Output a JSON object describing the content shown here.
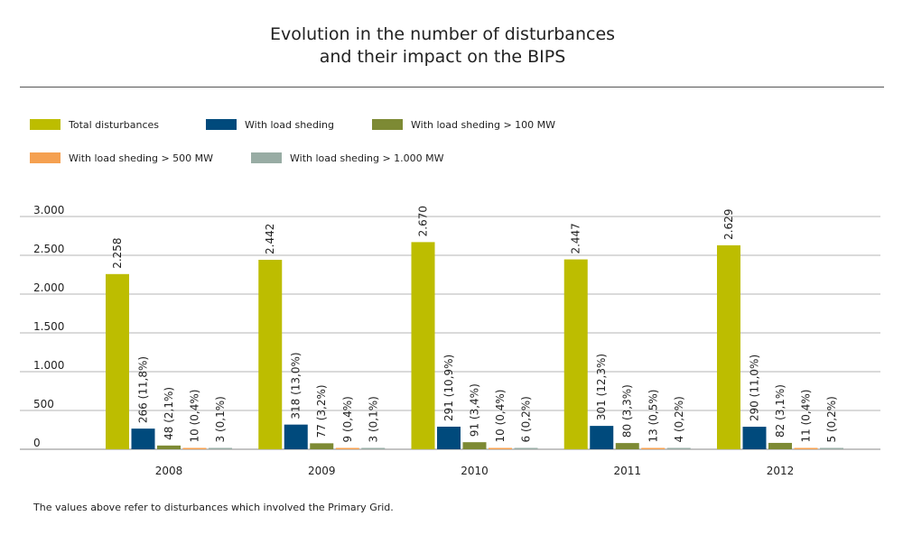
{
  "title_line1": "Evolution in the number of disturbances",
  "title_line2": "and their impact on the BIPS",
  "footnote": "The values above refer to disturbances which involved the Primary Grid.",
  "chart_data": {
    "type": "bar",
    "categories": [
      "2008",
      "2009",
      "2010",
      "2011",
      "2012"
    ],
    "ylim": [
      0,
      3000
    ],
    "yticks": [
      0,
      500,
      1000,
      1500,
      2000,
      2500,
      3000
    ],
    "ytick_labels": [
      "0",
      "500",
      "1.000",
      "1.500",
      "2.000",
      "2.500",
      "3.000"
    ],
    "grid": true,
    "legend_position": "top",
    "series": [
      {
        "name": "Total disturbances",
        "color": "#bdbd00",
        "values": [
          2258,
          2442,
          2670,
          2447,
          2629
        ],
        "labels": [
          "2.258",
          "2.442",
          "2.670",
          "2.447",
          "2.629"
        ]
      },
      {
        "name": "With load sheding",
        "color": "#004a7c",
        "values": [
          266,
          318,
          291,
          301,
          290
        ],
        "labels": [
          "266 (11,8%)",
          "318 (13,0%)",
          "291 (10,9%)",
          "301 (12,3%)",
          "290 (11,0%)"
        ]
      },
      {
        "name": "With load sheding > 100 MW",
        "color": "#7d8a34",
        "values": [
          48,
          77,
          91,
          80,
          82
        ],
        "labels": [
          "48 (2,1%)",
          "77 (3,2%)",
          "91 (3,4%)",
          "80 (3,3%)",
          "82 (3,1%)"
        ]
      },
      {
        "name": "With load sheding > 500 MW",
        "color": "#f5a050",
        "values": [
          10,
          9,
          10,
          13,
          11
        ],
        "labels": [
          "10 (0,4%)",
          "9 (0,4%)",
          "10 (0,4%)",
          "13 (0,5%)",
          "11 (0,4%)"
        ]
      },
      {
        "name": "With load sheding > 1.000 MW",
        "color": "#98aca4",
        "values": [
          3,
          3,
          6,
          4,
          5
        ],
        "labels": [
          "3 (0,1%)",
          "3 (0,1%)",
          "6 (0,2%)",
          "4 (0,2%)",
          "5 (0,2%)"
        ]
      }
    ]
  }
}
